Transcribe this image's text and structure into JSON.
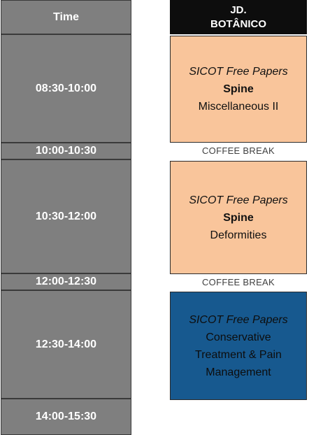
{
  "time_header": "Time",
  "room": {
    "line1": "JD.",
    "line2": "BOTÂNICO"
  },
  "times": [
    "08:30-10:00",
    "10:00-10:30",
    "10:30-12:00",
    "12:00-12:30",
    "12:30-14:00",
    "14:00-15:30"
  ],
  "sessions": [
    {
      "title": "SICOT Free Papers",
      "topic": "Spine",
      "subtitle": "Miscellaneous II",
      "color": "#f9c59b"
    },
    {
      "title": "SICOT Free Papers",
      "topic": "Spine",
      "subtitle": "Deformities",
      "color": "#f9c59b"
    },
    {
      "title": "SICOT Free Papers",
      "lines": [
        "Conservative",
        "Treatment & Pain",
        "Management"
      ],
      "color": "#17598f"
    }
  ],
  "breaks": [
    "COFFEE BREAK",
    "COFFEE BREAK"
  ]
}
